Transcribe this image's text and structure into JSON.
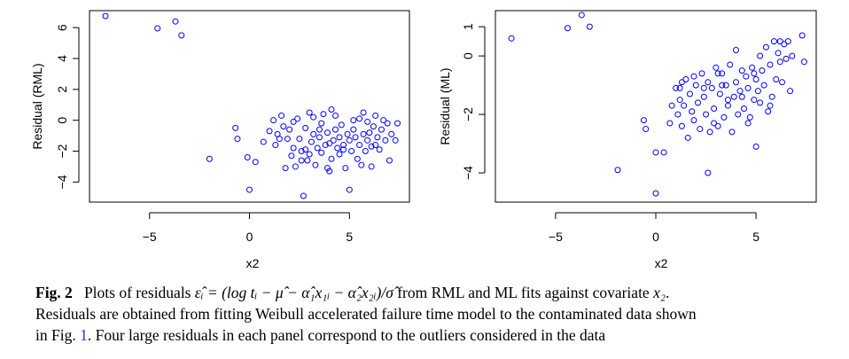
{
  "chart_data": [
    {
      "type": "scatter",
      "xlabel": "x2",
      "ylabel": "Residual (RML)",
      "xlim": [
        -8,
        8
      ],
      "ylim": [
        -5.3,
        7.1
      ],
      "xticks": [
        "−5",
        "0",
        "5"
      ],
      "yticks": [
        "−4",
        "−2",
        "0",
        "2",
        "4",
        "6"
      ],
      "xtick_values": [
        -5,
        0,
        5
      ],
      "ytick_values": [
        -4,
        -2,
        0,
        2,
        4,
        6
      ],
      "marker_color": "#0000ff",
      "points": [
        [
          -7.2,
          6.75
        ],
        [
          -4.6,
          5.95
        ],
        [
          -3.7,
          6.4
        ],
        [
          -3.4,
          5.5
        ],
        [
          -2.0,
          -2.5
        ],
        [
          -0.7,
          -0.5
        ],
        [
          -0.6,
          -1.2
        ],
        [
          -0.1,
          -2.4
        ],
        [
          0.0,
          -4.5
        ],
        [
          0.3,
          -2.7
        ],
        [
          0.7,
          -1.4
        ],
        [
          1.0,
          -0.7
        ],
        [
          1.2,
          0.0
        ],
        [
          1.3,
          -1.6
        ],
        [
          1.4,
          -0.9
        ],
        [
          1.5,
          -1.2
        ],
        [
          1.6,
          0.3
        ],
        [
          1.7,
          -0.4
        ],
        [
          1.8,
          -3.1
        ],
        [
          1.9,
          -1.2
        ],
        [
          2.0,
          -0.6
        ],
        [
          2.1,
          -2.3
        ],
        [
          2.2,
          -1.8
        ],
        [
          2.3,
          -3.0
        ],
        [
          2.4,
          0.1
        ],
        [
          2.5,
          -1.2
        ],
        [
          2.6,
          -2.0
        ],
        [
          2.6,
          -2.6
        ],
        [
          2.7,
          -4.9
        ],
        [
          2.8,
          -1.9
        ],
        [
          2.8,
          -0.5
        ],
        [
          2.9,
          -2.6
        ],
        [
          3.0,
          -2.2
        ],
        [
          3.0,
          0.5
        ],
        [
          3.1,
          -1.4
        ],
        [
          3.2,
          -0.9
        ],
        [
          3.2,
          0.2
        ],
        [
          3.3,
          -2.9
        ],
        [
          3.4,
          -1.8
        ],
        [
          3.5,
          -1.1
        ],
        [
          3.6,
          -0.2
        ],
        [
          3.6,
          -2.1
        ],
        [
          3.7,
          0.4
        ],
        [
          3.8,
          -1.6
        ],
        [
          3.9,
          -3.1
        ],
        [
          3.9,
          -0.8
        ],
        [
          4.0,
          -1.5
        ],
        [
          4.0,
          -3.3
        ],
        [
          4.1,
          -2.5
        ],
        [
          4.1,
          0.7
        ],
        [
          4.2,
          -1.3
        ],
        [
          4.3,
          -0.6
        ],
        [
          4.3,
          0.3
        ],
        [
          4.4,
          -1.8
        ],
        [
          4.5,
          -1.1
        ],
        [
          4.5,
          -2.2
        ],
        [
          4.6,
          -0.3
        ],
        [
          4.7,
          -1.6
        ],
        [
          4.8,
          -3.1
        ],
        [
          4.9,
          -0.9
        ],
        [
          5.0,
          -4.5
        ],
        [
          5.0,
          -1.3
        ],
        [
          5.1,
          -2.0
        ],
        [
          5.2,
          0.0
        ],
        [
          5.2,
          -0.6
        ],
        [
          5.3,
          -1.1
        ],
        [
          5.4,
          -2.5
        ],
        [
          5.5,
          0.1
        ],
        [
          5.5,
          -1.6
        ],
        [
          5.6,
          -2.9
        ],
        [
          5.7,
          0.5
        ],
        [
          5.7,
          -0.9
        ],
        [
          5.8,
          -2.0
        ],
        [
          5.9,
          -1.3
        ],
        [
          6.0,
          -0.8
        ],
        [
          6.1,
          -1.7
        ],
        [
          6.1,
          -3.0
        ],
        [
          6.2,
          -0.4
        ],
        [
          6.3,
          0.3
        ],
        [
          6.4,
          -1.1
        ],
        [
          6.5,
          -1.9
        ],
        [
          6.6,
          -0.6
        ],
        [
          6.7,
          0.0
        ],
        [
          6.8,
          -1.3
        ],
        [
          6.9,
          -0.2
        ],
        [
          7.0,
          -2.6
        ],
        [
          7.1,
          -0.9
        ],
        [
          7.3,
          -1.3
        ],
        [
          7.4,
          -0.2
        ],
        [
          6.3,
          -1.6
        ],
        [
          5.9,
          -0.1
        ],
        [
          4.7,
          -1.9
        ],
        [
          3.5,
          -0.6
        ],
        [
          2.2,
          -0.1
        ]
      ]
    },
    {
      "type": "scatter",
      "xlabel": "x2",
      "ylabel": "Residual (ML)",
      "xlim": [
        -8,
        8
      ],
      "ylim": [
        -5.0,
        1.55
      ],
      "xticks": [
        "−5",
        "0",
        "5"
      ],
      "yticks": [
        "−4",
        "−2",
        "0",
        "1"
      ],
      "xtick_values": [
        -5,
        0,
        5
      ],
      "ytick_values": [
        -4,
        -2,
        0,
        1
      ],
      "marker_color": "#0000ff",
      "points": [
        [
          -7.2,
          0.6
        ],
        [
          -4.4,
          0.95
        ],
        [
          -3.7,
          1.4
        ],
        [
          -3.3,
          1.0
        ],
        [
          -1.9,
          -3.9
        ],
        [
          -0.6,
          -2.2
        ],
        [
          -0.5,
          -2.5
        ],
        [
          0.0,
          -4.7
        ],
        [
          0.0,
          -3.3
        ],
        [
          0.4,
          -3.3
        ],
        [
          0.7,
          -2.3
        ],
        [
          0.8,
          -1.7
        ],
        [
          1.0,
          -1.1
        ],
        [
          1.1,
          -2.0
        ],
        [
          1.2,
          -1.5
        ],
        [
          1.3,
          -0.9
        ],
        [
          1.3,
          -2.4
        ],
        [
          1.4,
          -1.7
        ],
        [
          1.5,
          -0.8
        ],
        [
          1.6,
          -2.8
        ],
        [
          1.7,
          -1.3
        ],
        [
          1.8,
          -1.9
        ],
        [
          1.9,
          -2.2
        ],
        [
          2.0,
          -1.0
        ],
        [
          2.1,
          -1.6
        ],
        [
          2.2,
          -2.5
        ],
        [
          2.3,
          -0.6
        ],
        [
          2.4,
          -1.4
        ],
        [
          2.5,
          -2.0
        ],
        [
          2.6,
          -0.9
        ],
        [
          2.6,
          -4.0
        ],
        [
          2.7,
          -2.6
        ],
        [
          2.8,
          -1.1
        ],
        [
          2.9,
          -1.8
        ],
        [
          3.0,
          -0.4
        ],
        [
          3.1,
          -2.4
        ],
        [
          3.2,
          -1.3
        ],
        [
          3.3,
          -0.6
        ],
        [
          3.4,
          -2.1
        ],
        [
          3.5,
          -1.0
        ],
        [
          3.6,
          -1.7
        ],
        [
          3.7,
          -0.3
        ],
        [
          3.8,
          -2.6
        ],
        [
          3.9,
          -1.4
        ],
        [
          4.0,
          -0.9
        ],
        [
          4.0,
          0.2
        ],
        [
          4.1,
          -2.0
        ],
        [
          4.2,
          -1.2
        ],
        [
          4.3,
          -0.5
        ],
        [
          4.4,
          -1.8
        ],
        [
          4.5,
          -0.7
        ],
        [
          4.6,
          -1.1
        ],
        [
          4.7,
          -2.1
        ],
        [
          4.8,
          -0.4
        ],
        [
          4.9,
          -1.5
        ],
        [
          5.0,
          -3.1
        ],
        [
          5.0,
          -0.8
        ],
        [
          5.1,
          -1.2
        ],
        [
          5.2,
          0.0
        ],
        [
          5.3,
          -0.5
        ],
        [
          5.4,
          -1.0
        ],
        [
          5.5,
          0.3
        ],
        [
          5.6,
          -1.9
        ],
        [
          5.7,
          -0.3
        ],
        [
          5.8,
          -1.4
        ],
        [
          5.9,
          0.5
        ],
        [
          6.0,
          -0.8
        ],
        [
          6.1,
          0.1
        ],
        [
          6.2,
          0.5
        ],
        [
          6.3,
          -0.9
        ],
        [
          6.4,
          0.4
        ],
        [
          6.5,
          -0.1
        ],
        [
          6.7,
          -1.2
        ],
        [
          6.8,
          0.0
        ],
        [
          7.3,
          0.7
        ],
        [
          7.4,
          -0.2
        ],
        [
          6.2,
          -0.2
        ],
        [
          5.7,
          -1.7
        ],
        [
          4.3,
          -1.4
        ],
        [
          3.1,
          -0.6
        ],
        [
          2.4,
          -1.1
        ],
        [
          1.9,
          -0.7
        ],
        [
          4.6,
          -2.3
        ],
        [
          3.6,
          -1.5
        ],
        [
          2.9,
          -2.3
        ],
        [
          5.2,
          -1.6
        ],
        [
          4.9,
          -0.6
        ],
        [
          1.2,
          -1.1
        ],
        [
          3.3,
          -1.0
        ],
        [
          6.6,
          0.5
        ]
      ]
    }
  ],
  "caption": {
    "label": "Fig. 2",
    "line1_a": "Plots of residuals ",
    "formula": "ε̂ᵢ = (log tᵢ − μ̂ − α̂₁x₁ᵢ − α̂₂x₂ᵢ)/σ̂",
    "line1_b": " from RML and ML fits against covariate ",
    "covariate": "x₂",
    "line1_c": ".",
    "line2": "Residuals are obtained from fitting Weibull accelerated failure time model to the contaminated data shown",
    "line3_a": "in Fig. ",
    "line3_ref": "1",
    "line3_b": ". Four large residuals in each panel correspond to the outliers considered in the data"
  }
}
